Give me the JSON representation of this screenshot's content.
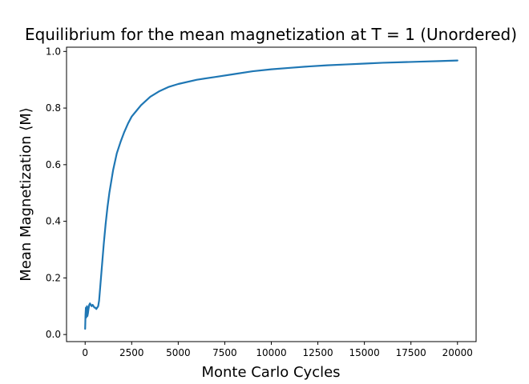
{
  "chart_data": {
    "type": "line",
    "title": "Equilibrium for the mean magnetization at T = 1 (Unordered)",
    "xlabel": "Monte Carlo Cycles",
    "ylabel": "Mean Magnetization ⟨M⟩",
    "xlim": [
      -1000,
      21000
    ],
    "ylim": [
      -0.025,
      1.015
    ],
    "xticks": [
      0,
      2500,
      5000,
      7500,
      10000,
      12500,
      15000,
      17500,
      20000
    ],
    "xtick_labels": [
      "0",
      "2500",
      "5000",
      "7500",
      "10000",
      "12500",
      "15000",
      "17500",
      "20000"
    ],
    "yticks": [
      0.0,
      0.2,
      0.4,
      0.6,
      0.8,
      1.0
    ],
    "ytick_labels": [
      "0.0",
      "0.2",
      "0.4",
      "0.6",
      "0.8",
      "1.0"
    ],
    "grid": false,
    "legend": "none",
    "series": [
      {
        "color": "#1f77b4",
        "x": [
          0,
          20,
          40,
          60,
          80,
          100,
          120,
          150,
          180,
          220,
          260,
          300,
          350,
          400,
          450,
          500,
          550,
          600,
          650,
          700,
          750,
          800,
          850,
          900,
          1000,
          1100,
          1200,
          1300,
          1400,
          1500,
          1700,
          1900,
          2100,
          2300,
          2500,
          2750,
          3000,
          3500,
          4000,
          4500,
          5000,
          6000,
          7000,
          8000,
          9000,
          10000,
          11000,
          12000,
          13000,
          14000,
          15000,
          16000,
          17000,
          18000,
          19000,
          20000
        ],
        "y": [
          0.02,
          0.07,
          0.095,
          0.06,
          0.085,
          0.1,
          0.065,
          0.075,
          0.09,
          0.105,
          0.11,
          0.105,
          0.1,
          0.105,
          0.1,
          0.095,
          0.095,
          0.09,
          0.095,
          0.1,
          0.12,
          0.16,
          0.2,
          0.24,
          0.32,
          0.39,
          0.45,
          0.5,
          0.54,
          0.58,
          0.64,
          0.68,
          0.715,
          0.745,
          0.77,
          0.79,
          0.81,
          0.84,
          0.86,
          0.875,
          0.885,
          0.9,
          0.91,
          0.92,
          0.93,
          0.937,
          0.942,
          0.947,
          0.951,
          0.954,
          0.957,
          0.96,
          0.962,
          0.964,
          0.966,
          0.968
        ]
      }
    ]
  }
}
